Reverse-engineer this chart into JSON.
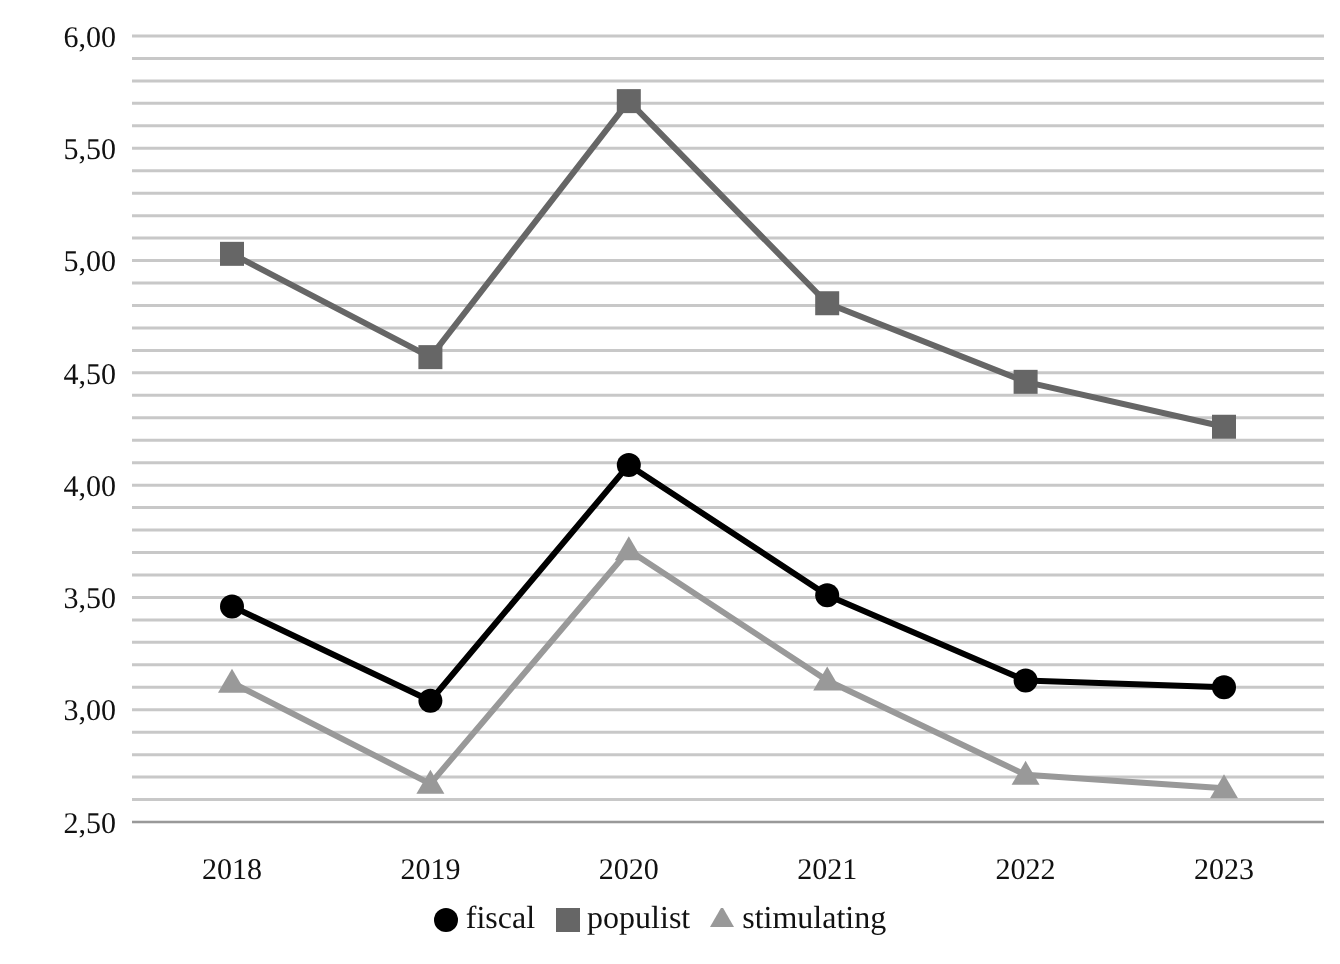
{
  "chart_data": {
    "type": "line",
    "categories": [
      "2018",
      "2019",
      "2020",
      "2021",
      "2022",
      "2023"
    ],
    "series": [
      {
        "name": "fiscal",
        "color": "#000000",
        "marker": "circle",
        "values": [
          3.46,
          3.04,
          4.09,
          3.51,
          3.13,
          3.1
        ]
      },
      {
        "name": "populist",
        "color": "#666666",
        "marker": "square",
        "values": [
          5.03,
          4.57,
          5.71,
          4.81,
          4.46,
          4.26
        ]
      },
      {
        "name": "stimulating",
        "color": "#999999",
        "marker": "triangle",
        "values": [
          3.12,
          2.67,
          3.71,
          3.13,
          2.71,
          2.65
        ]
      }
    ],
    "ylim": [
      2.5,
      6
    ],
    "yticks": [
      {
        "value": 2.5,
        "label": "2,50"
      },
      {
        "value": 2.6,
        "label": null
      },
      {
        "value": 2.7,
        "label": null
      },
      {
        "value": 2.8,
        "label": null
      },
      {
        "value": 2.9,
        "label": null
      },
      {
        "value": 3,
        "label": "3,00"
      },
      {
        "value": 3.1,
        "label": null
      },
      {
        "value": 3.2,
        "label": null
      },
      {
        "value": 3.3,
        "label": null
      },
      {
        "value": 3.4,
        "label": null
      },
      {
        "value": 3.5,
        "label": "3,50"
      },
      {
        "value": 3.6,
        "label": null
      },
      {
        "value": 3.7,
        "label": null
      },
      {
        "value": 3.8,
        "label": null
      },
      {
        "value": 3.9,
        "label": null
      },
      {
        "value": 4,
        "label": "4,00"
      },
      {
        "value": 4.1,
        "label": null
      },
      {
        "value": 4.2,
        "label": null
      },
      {
        "value": 4.3,
        "label": null
      },
      {
        "value": 4.4,
        "label": null
      },
      {
        "value": 4.5,
        "label": "4,50"
      },
      {
        "value": 4.6,
        "label": null
      },
      {
        "value": 4.7,
        "label": null
      },
      {
        "value": 4.8,
        "label": null
      },
      {
        "value": 4.9,
        "label": null
      },
      {
        "value": 5,
        "label": "5,00"
      },
      {
        "value": 5.1,
        "label": null
      },
      {
        "value": 5.2,
        "label": null
      },
      {
        "value": 5.3,
        "label": null
      },
      {
        "value": 5.4,
        "label": null
      },
      {
        "value": 5.5,
        "label": "5,50"
      },
      {
        "value": 5.6,
        "label": null
      },
      {
        "value": 5.7,
        "label": null
      },
      {
        "value": 5.8,
        "label": null
      },
      {
        "value": 5.9,
        "label": null
      },
      {
        "value": 6,
        "label": "6,00"
      }
    ],
    "grid": "y",
    "legend": "bottom",
    "line_style": "solid"
  }
}
